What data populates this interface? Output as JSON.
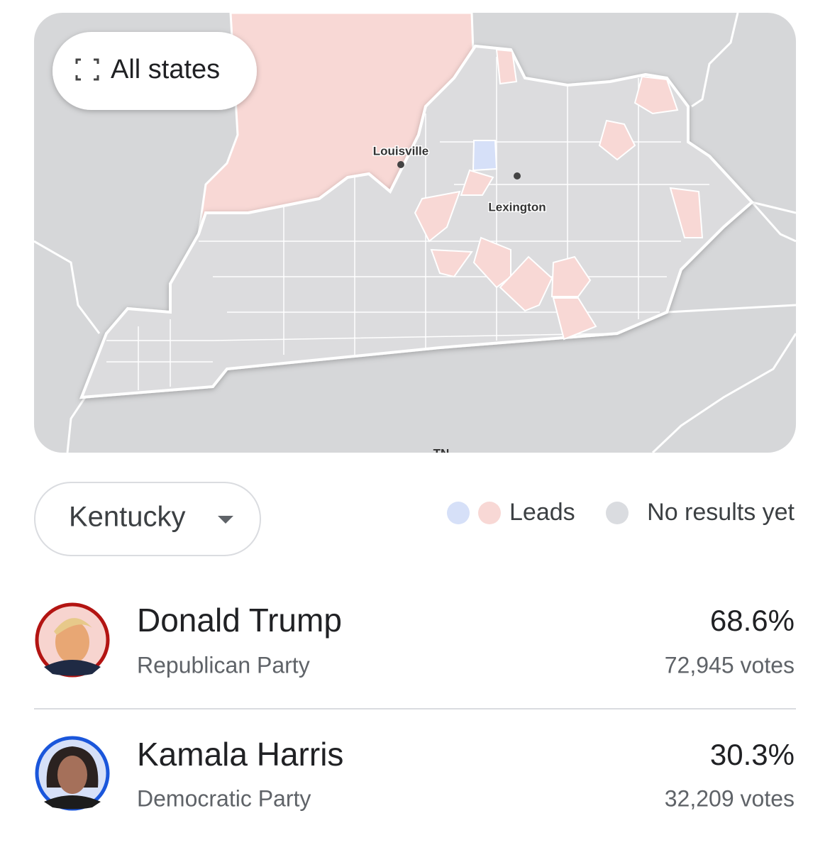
{
  "map": {
    "button": "All states",
    "cities": [
      "Louisville",
      "Lexington"
    ],
    "state_label": "TN"
  },
  "selector": {
    "state": "Kentucky"
  },
  "legend": {
    "leads": "Leads",
    "no_results": "No results yet"
  },
  "candidates": [
    {
      "name": "Donald Trump",
      "party": "Republican Party",
      "percent": "68.6%",
      "votes": "72,945 votes"
    },
    {
      "name": "Kamala Harris",
      "party": "Democratic Party",
      "percent": "30.3%",
      "votes": "32,209 votes"
    }
  ]
}
